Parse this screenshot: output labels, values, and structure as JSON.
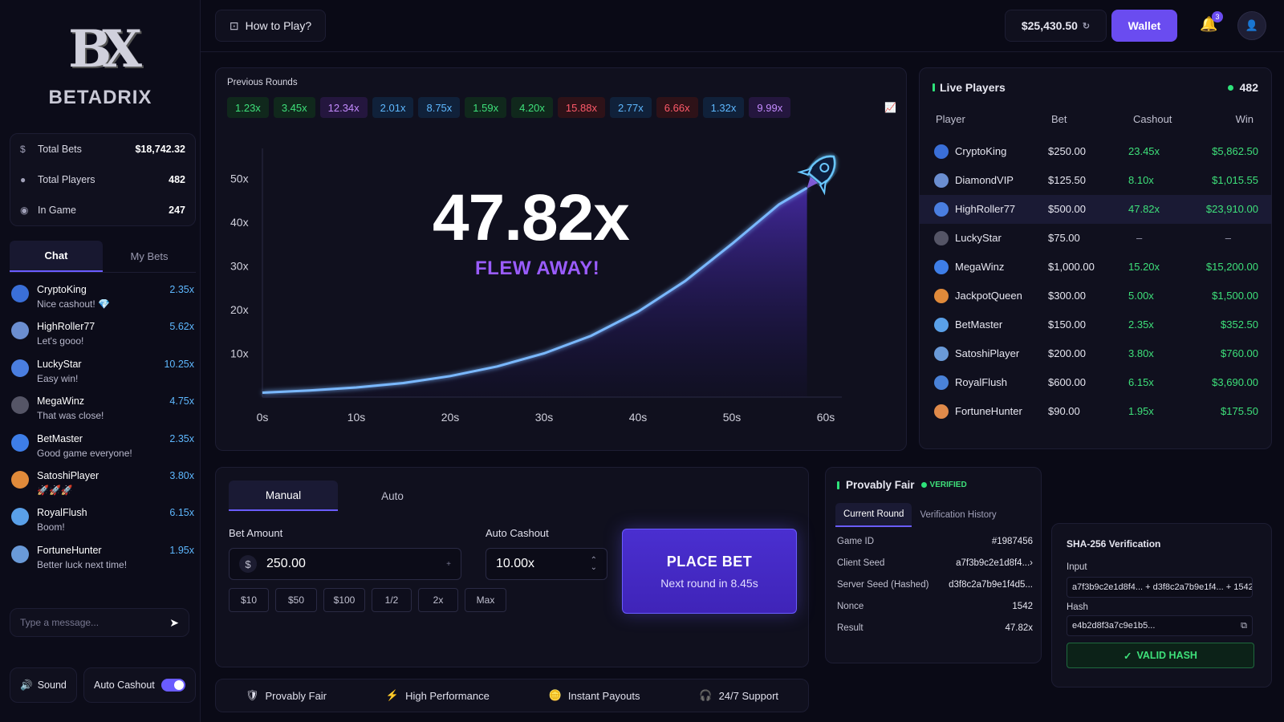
{
  "brand": {
    "mark": "BX",
    "name": "BETADRIX"
  },
  "stats": [
    {
      "label": "Total Bets",
      "value": "$18,742.32",
      "icon": "dollar-icon"
    },
    {
      "label": "Total Players",
      "value": "482",
      "icon": "user-icon"
    },
    {
      "label": "In Game",
      "value": "247",
      "icon": "person-icon"
    }
  ],
  "chat": {
    "tabs": [
      "Chat",
      "My Bets"
    ],
    "messages": [
      {
        "name": "CryptoKing",
        "text": "Nice cashout! 💎",
        "mult": "2.35x"
      },
      {
        "name": "HighRoller77",
        "text": "Let's gooo!",
        "mult": "5.62x"
      },
      {
        "name": "LuckyStar",
        "text": "Easy win!",
        "mult": "10.25x"
      },
      {
        "name": "MegaWinz",
        "text": "That was close!",
        "mult": "4.75x"
      },
      {
        "name": "BetMaster",
        "text": "Good game everyone!",
        "mult": "2.35x"
      },
      {
        "name": "SatoshiPlayer",
        "text": "🚀🚀🚀",
        "mult": "3.80x"
      },
      {
        "name": "RoyalFlush",
        "text": "Boom!",
        "mult": "6.15x"
      },
      {
        "name": "FortuneHunter",
        "text": "Better luck next time!",
        "mult": "1.95x"
      }
    ],
    "placeholder": "Type a message..."
  },
  "controls": {
    "sound": "Sound",
    "auto_cashout": "Auto Cashout"
  },
  "header": {
    "how_to_play": "How to Play?",
    "balance": "$25,430.50",
    "wallet": "Wallet",
    "notifications": "3"
  },
  "game": {
    "previous_title": "Previous Rounds",
    "previous": [
      {
        "v": "1.23x",
        "c": "#3ee07a",
        "bg": "#10281c"
      },
      {
        "v": "3.45x",
        "c": "#3ee07a",
        "bg": "#10281c"
      },
      {
        "v": "12.34x",
        "c": "#c48bff",
        "bg": "#24163e"
      },
      {
        "v": "2.01x",
        "c": "#5eb8ff",
        "bg": "#10213a"
      },
      {
        "v": "8.75x",
        "c": "#5eb8ff",
        "bg": "#10213a"
      },
      {
        "v": "1.59x",
        "c": "#3ee07a",
        "bg": "#10281c"
      },
      {
        "v": "4.20x",
        "c": "#3ee07a",
        "bg": "#10281c"
      },
      {
        "v": "15.88x",
        "c": "#ff5a6a",
        "bg": "#2e1218"
      },
      {
        "v": "2.77x",
        "c": "#5eb8ff",
        "bg": "#10213a"
      },
      {
        "v": "6.66x",
        "c": "#ff5a6a",
        "bg": "#2e1218"
      },
      {
        "v": "1.32x",
        "c": "#5eb8ff",
        "bg": "#10213a"
      },
      {
        "v": "9.99x",
        "c": "#c48bff",
        "bg": "#24163e"
      }
    ],
    "multiplier": "47.82x",
    "status": "FLEW AWAY!"
  },
  "chart_data": {
    "type": "line",
    "x_ticks": [
      "0s",
      "10s",
      "20s",
      "30s",
      "40s",
      "50s",
      "60s"
    ],
    "y_ticks": [
      "10x",
      "20x",
      "30x",
      "40x",
      "50x"
    ],
    "xlim": [
      0,
      60
    ],
    "ylim": [
      0,
      55
    ],
    "series": [
      {
        "x": [
          0,
          5,
          10,
          15,
          20,
          25,
          30,
          35,
          40,
          45,
          50,
          55,
          58
        ],
        "y": [
          1,
          1.5,
          2.2,
          3.2,
          4.8,
          7,
          10,
          14,
          19.5,
          26.5,
          35,
          44,
          47.82
        ]
      }
    ]
  },
  "players": {
    "title": "Live Players",
    "count": "482",
    "columns": [
      "Player",
      "Bet",
      "Cashout",
      "Win"
    ],
    "rows": [
      {
        "player": "CryptoKing",
        "bet": "$250.00",
        "cashout": "23.45x",
        "win": "$5,862.50"
      },
      {
        "player": "DiamondVIP",
        "bet": "$125.50",
        "cashout": "8.10x",
        "win": "$1,015.55"
      },
      {
        "player": "HighRoller77",
        "bet": "$500.00",
        "cashout": "47.82x",
        "win": "$23,910.00"
      },
      {
        "player": "LuckyStar",
        "bet": "$75.00",
        "cashout": "–",
        "win": "–"
      },
      {
        "player": "MegaWinz",
        "bet": "$1,000.00",
        "cashout": "15.20x",
        "win": "$15,200.00"
      },
      {
        "player": "JackpotQueen",
        "bet": "$300.00",
        "cashout": "5.00x",
        "win": "$1,500.00"
      },
      {
        "player": "BetMaster",
        "bet": "$150.00",
        "cashout": "2.35x",
        "win": "$352.50"
      },
      {
        "player": "SatoshiPlayer",
        "bet": "$200.00",
        "cashout": "3.80x",
        "win": "$760.00"
      },
      {
        "player": "RoyalFlush",
        "bet": "$600.00",
        "cashout": "6.15x",
        "win": "$3,690.00"
      },
      {
        "player": "FortuneHunter",
        "bet": "$90.00",
        "cashout": "1.95x",
        "win": "$175.50"
      }
    ]
  },
  "bet": {
    "tabs": [
      "Manual",
      "Auto"
    ],
    "amount_label": "Bet Amount",
    "currency": "$",
    "amount": "250.00",
    "cashout_label": "Auto Cashout",
    "cashout": "10.00x",
    "quick": [
      "$10",
      "$50",
      "$100",
      "1/2",
      "2x",
      "Max"
    ],
    "place": "PLACE BET",
    "next_round": "Next round in 8.45s"
  },
  "features": [
    "Provably Fair",
    "High Performance",
    "Instant Payouts",
    "24/7 Support"
  ],
  "fair": {
    "title": "Provably Fair",
    "verified": "VERIFIED",
    "tabs": [
      "Current Round",
      "Verification History"
    ],
    "rows": [
      {
        "k": "Game ID",
        "v": "#1987456"
      },
      {
        "k": "Client Seed",
        "v": "a7f3b9c2e1d8f4...›"
      },
      {
        "k": "Server Seed (Hashed)",
        "v": "d3f8c2a7b9e1f4d5..."
      },
      {
        "k": "Nonce",
        "v": "1542"
      },
      {
        "k": "Result",
        "v": "47.82x"
      }
    ]
  },
  "sha": {
    "title": "SHA-256 Verification",
    "input_label": "Input",
    "input": "a7f3b9c2e1d8f4... + d3f8c2a7b9e1f4... + 1542",
    "hash_label": "Hash",
    "hash": "e4b2d8f3a7c9e1b5...",
    "valid": "VALID HASH"
  }
}
